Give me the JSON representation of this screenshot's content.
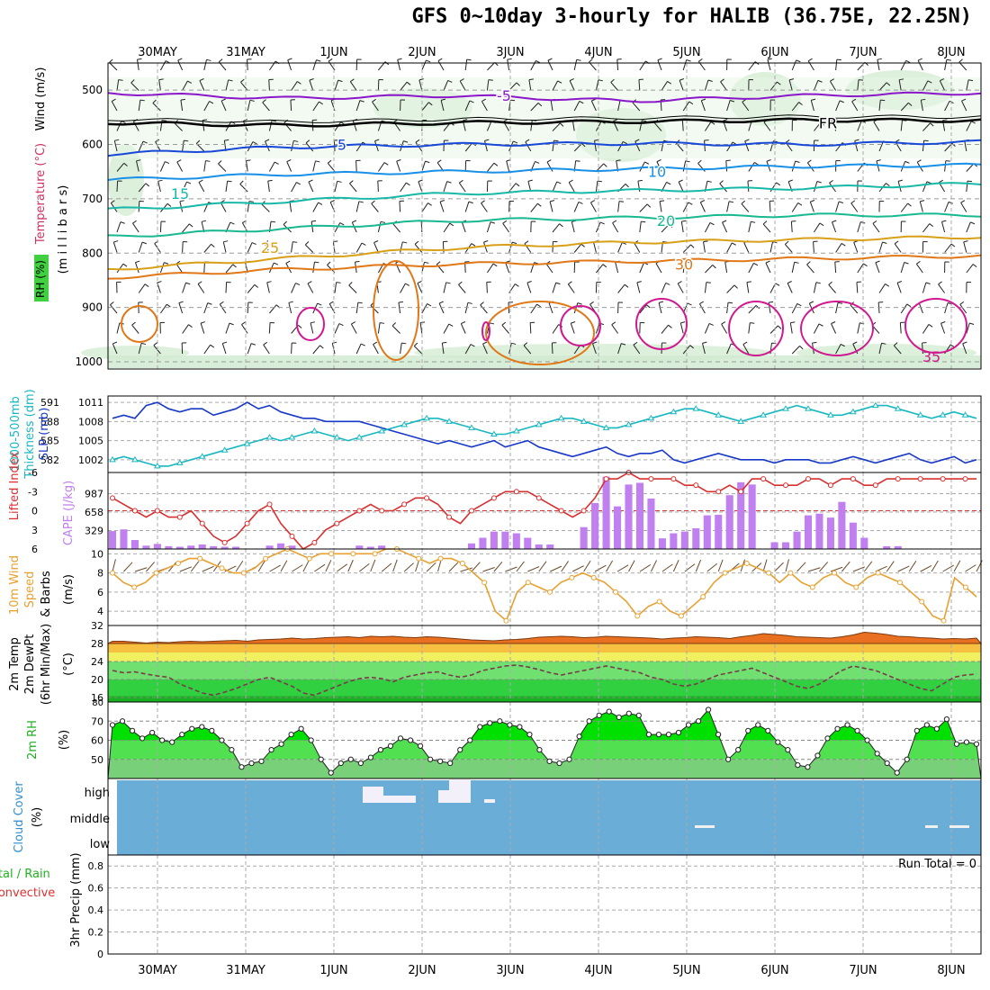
{
  "title": "GFS 0~10day 3-hourly for HALIB (36.75E, 22.25N)",
  "colors": {
    "purple": "#8a18c8",
    "black": "#000000",
    "blue": "#1848d8",
    "sky": "#1890e8",
    "teal": "#18b8a8",
    "green": "#18b890",
    "gold": "#d8a018",
    "orange": "#e07818",
    "magenta": "#d01890",
    "cape": "#c080f0",
    "lifted": "#d83030",
    "thickness": "#18b8c0",
    "slp": "#1838c8",
    "windspd": "#e8a030",
    "cloud": "#6aaed8",
    "rh_dark": "#00e000",
    "rh_mid": "#50e050",
    "rh_light": "#78d078"
  },
  "chart_data": [
    {
      "panel": "upper-air",
      "type": "area",
      "ylabel_parts": [
        "RH (%)",
        "Temperature (°C)",
        "Wind (m/s)",
        "(m i l l i b a r s)"
      ],
      "y_ticks": [
        "500",
        "600",
        "700",
        "800",
        "900",
        "1000"
      ],
      "ylim": [
        1000,
        450
      ],
      "isotherms": [
        {
          "label": "-5",
          "pressure": [
            505,
            515,
            510,
            520,
            510,
            505
          ],
          "color": "purple"
        },
        {
          "label": "FR",
          "pressure": [
            560,
            565,
            560,
            558,
            555,
            556
          ],
          "color": "black"
        },
        {
          "label": "5",
          "pressure": [
            618,
            605,
            600,
            598,
            600,
            595
          ],
          "color": "blue"
        },
        {
          "label": "10",
          "pressure": [
            665,
            655,
            650,
            645,
            640,
            638
          ],
          "color": "sky"
        },
        {
          "label": "15",
          "pressure": [
            720,
            705,
            690,
            685,
            680,
            672
          ],
          "color": "teal"
        },
        {
          "label": "20",
          "pressure": [
            770,
            755,
            740,
            735,
            730,
            730
          ],
          "color": "green"
        },
        {
          "label": "25",
          "pressure": [
            830,
            810,
            790,
            780,
            775,
            770
          ],
          "color": "gold"
        },
        {
          "label": "30",
          "pressure": [
            845,
            830,
            820,
            815,
            810,
            805
          ],
          "color": "orange"
        },
        {
          "label": "35",
          "pressure": [
            960,
            955,
            950,
            945,
            955,
            960
          ],
          "color": "magenta"
        }
      ],
      "contour_labels": [
        "-5",
        "FR",
        "5",
        "10",
        "15",
        "20",
        "25",
        "30",
        "35"
      ]
    },
    {
      "panel": "slp-thickness",
      "type": "line",
      "ylabel_parts": [
        "1000-500mb",
        "Thickness (dm)",
        "SLP (mb)"
      ],
      "left_ticks": [
        "591",
        "588",
        "585",
        "582"
      ],
      "right_ticks": [
        "1011",
        "1008",
        "1005",
        "1002"
      ],
      "ylim": [
        1000,
        1012
      ],
      "slp": [
        1008.5,
        1009,
        1008.5,
        1010.5,
        1011,
        1010,
        1009.5,
        1010,
        1010,
        1009,
        1009.5,
        1010,
        1011,
        1010,
        1010.5,
        1009.5,
        1009,
        1008.5,
        1008.5,
        1008,
        1008,
        1008,
        1008,
        1007.5,
        1007,
        1006.5,
        1006,
        1005.5,
        1005,
        1004.5,
        1005,
        1004.5,
        1004,
        1004.5,
        1005,
        1004,
        1004.5,
        1005,
        1004,
        1003.5,
        1003,
        1002.5,
        1003,
        1003.5,
        1004,
        1003,
        1002.5,
        1003,
        1003,
        1003.5,
        1002,
        1001.5,
        1002,
        1002.5,
        1003,
        1002.5,
        1002,
        1002,
        1002,
        1001.5,
        1002,
        1002,
        1002,
        1001.5,
        1001.5,
        1002,
        1002.5,
        1002,
        1001.5,
        1002,
        1002.5,
        1003,
        1002,
        1001.5,
        1002,
        1002.5,
        1001.5,
        1002
      ],
      "thickness": [
        1002,
        1002.5,
        1002,
        1001.5,
        1001,
        1001,
        1001.5,
        1002,
        1002.5,
        1003,
        1003.5,
        1004,
        1004.5,
        1005,
        1005.5,
        1005,
        1005.5,
        1006,
        1006.5,
        1006,
        1005.5,
        1005,
        1005.5,
        1006,
        1006.5,
        1007,
        1007.5,
        1008,
        1008.5,
        1008.5,
        1008,
        1007.5,
        1007,
        1006.5,
        1006,
        1006,
        1006.5,
        1007,
        1007.5,
        1008,
        1008.5,
        1008.5,
        1008,
        1007.5,
        1007,
        1007,
        1007.5,
        1008,
        1008.5,
        1009,
        1009.5,
        1010,
        1010,
        1009.5,
        1009,
        1008.5,
        1008,
        1008.5,
        1009,
        1009.5,
        1010,
        1010.5,
        1010,
        1009.5,
        1009,
        1009,
        1009.5,
        1010,
        1010.5,
        1010.5,
        1010,
        1009.5,
        1009,
        1008.5,
        1009,
        1009.5,
        1009,
        1008.5
      ]
    },
    {
      "panel": "cape-lifted-index",
      "type": "bar",
      "ylabel_parts": [
        "Lifted Index",
        "CAPE (J/kg)"
      ],
      "left_ticks": [
        "-6",
        "-3",
        "0",
        "3",
        "6"
      ],
      "right_ticks": [
        "987",
        "658",
        "329"
      ],
      "ylim": [
        0,
        1300
      ],
      "cape": [
        320,
        350,
        160,
        60,
        90,
        50,
        40,
        60,
        80,
        50,
        40,
        40,
        0,
        0,
        60,
        100,
        60,
        0,
        0,
        0,
        0,
        0,
        60,
        40,
        60,
        0,
        0,
        0,
        0,
        0,
        0,
        0,
        100,
        200,
        310,
        310,
        280,
        200,
        80,
        80,
        0,
        0,
        390,
        820,
        1290,
        760,
        1150,
        1180,
        900,
        190,
        280,
        310,
        370,
        600,
        610,
        960,
        1190,
        1150,
        0,
        120,
        120,
        310,
        600,
        630,
        560,
        840,
        470,
        200,
        0,
        50,
        50,
        0,
        0,
        0,
        0,
        0,
        0,
        0
      ],
      "lifted_index": [
        -2,
        -1,
        0,
        1,
        0,
        1,
        1,
        0,
        2,
        4,
        5,
        4,
        2,
        0,
        -1,
        2,
        4,
        6,
        5,
        3,
        2,
        1,
        0,
        -1,
        0,
        0,
        -1,
        -2,
        -2,
        -1,
        1,
        2,
        0,
        -1,
        -2,
        -3,
        -3,
        -3,
        -2,
        -1,
        0,
        1,
        0,
        -2,
        -5,
        -5,
        -6,
        -5,
        -5,
        -5,
        -5,
        -4,
        -4,
        -3,
        -3,
        -4,
        -3,
        -5,
        -5,
        -4,
        -4,
        -4,
        -5,
        -5,
        -4,
        -5,
        -5,
        -4,
        -4,
        -5,
        -5,
        -5,
        -5,
        -5,
        -5,
        -5,
        -5,
        -5
      ]
    },
    {
      "panel": "wind-10m",
      "type": "line",
      "ylabel_parts": [
        "10m Wind",
        "Speed",
        "& Barbs",
        "(m/s)"
      ],
      "y_ticks": [
        "10",
        "8",
        "6",
        "4"
      ],
      "ylim": [
        2.5,
        10.5
      ],
      "speed": [
        8,
        7,
        6.5,
        7,
        8,
        8.5,
        9,
        9.5,
        9.5,
        9,
        8.5,
        8,
        8,
        8.5,
        9.5,
        10,
        10.5,
        10,
        9.5,
        10,
        10,
        10,
        10,
        10,
        10,
        10.5,
        10.5,
        10,
        9.5,
        9,
        9.5,
        9.5,
        9,
        8,
        7,
        4,
        3,
        6,
        7,
        6.5,
        6,
        7,
        7.5,
        8,
        7.5,
        7,
        6,
        5,
        3.5,
        4.5,
        5,
        4,
        3.5,
        4.5,
        5.5,
        7,
        8,
        8.5,
        9,
        8.5,
        8,
        7,
        8,
        7,
        6.5,
        7.5,
        8,
        7,
        6.5,
        7.5,
        8,
        7.5,
        7,
        6,
        5,
        3.5,
        3,
        7.5,
        6.5,
        5.5
      ]
    },
    {
      "panel": "temp-dewpoint",
      "type": "area",
      "ylabel_parts": [
        "2m Temp",
        "2m DewPt",
        "(6hr Min/Max)",
        "(°C)"
      ],
      "y_ticks": [
        "32",
        "28",
        "24",
        "20",
        "16"
      ],
      "ylim": [
        15,
        32
      ],
      "temp": [
        28.5,
        28.5,
        28.3,
        28.1,
        28.3,
        28.2,
        28.4,
        28.5,
        28.4,
        28.5,
        28.6,
        28.7,
        28.5,
        28.8,
        28.9,
        29.0,
        29.2,
        29.0,
        29.1,
        29.3,
        29.4,
        29.5,
        29.3,
        29.6,
        29.5,
        29.6,
        29.4,
        29.3,
        29.5,
        29.4,
        29.2,
        29.0,
        28.8,
        28.7,
        28.6,
        28.8,
        28.9,
        29.1,
        29.4,
        29.5,
        29.6,
        29.5,
        29.3,
        29.4,
        29.6,
        29.5,
        29.4,
        29.3,
        29.2,
        29.0,
        29.2,
        29.3,
        29.5,
        29.4,
        29.3,
        29.1,
        29.5,
        29.8,
        30.2,
        30.0,
        29.8,
        29.5,
        29.4,
        29.3,
        29.2,
        29.5,
        29.9,
        30.5,
        30.3,
        30.0,
        29.6,
        29.5,
        29.3,
        29.2,
        29.0,
        29.1,
        29.0,
        29.2
      ],
      "dewpt": [
        22,
        21.5,
        21.7,
        21.2,
        20.8,
        20.5,
        19,
        18,
        17,
        16.5,
        17.2,
        18,
        19,
        20,
        20.5,
        19.5,
        18.5,
        17,
        16.5,
        17.5,
        18.5,
        19.5,
        20.2,
        20.5,
        20.2,
        19.5,
        20.5,
        21,
        21.5,
        21.7,
        21,
        20.5,
        21,
        22,
        22.5,
        23.0,
        23.2,
        22.8,
        22.2,
        21.5,
        21.0,
        21.5,
        22,
        22.5,
        23,
        22.5,
        22,
        21.5,
        20.5,
        20,
        19,
        18.5,
        19,
        20,
        21,
        21.5,
        22,
        22.5,
        21.5,
        20.5,
        19.5,
        18.5,
        18,
        19,
        20.5,
        22,
        23,
        22.5,
        22,
        21,
        20,
        19,
        18,
        17.5,
        19,
        20.5,
        21,
        21.2
      ]
    },
    {
      "panel": "rh-2m",
      "type": "area",
      "ylabel_parts": [
        "2m RH",
        "(%)"
      ],
      "y_ticks": [
        "80",
        "70",
        "60",
        "50"
      ],
      "ylim": [
        40,
        80
      ],
      "rh": [
        68,
        70,
        65,
        61,
        64,
        60,
        59,
        63,
        66,
        67,
        65,
        60,
        55,
        46,
        48,
        49,
        55,
        58,
        63,
        66,
        60,
        50,
        43,
        48,
        50,
        48,
        51,
        55,
        57,
        61,
        60,
        57,
        50,
        49,
        48,
        55,
        60,
        67,
        69,
        70,
        68,
        67,
        63,
        55,
        49,
        48,
        50,
        62,
        70,
        73,
        75,
        72,
        74,
        73,
        63,
        63,
        63,
        64,
        68,
        70,
        76,
        63,
        50,
        55,
        65,
        68,
        65,
        59,
        55,
        47,
        46,
        52,
        61,
        66,
        68,
        65,
        60,
        53,
        48,
        43,
        50,
        65,
        68,
        66,
        71,
        58,
        59,
        58
      ]
    },
    {
      "panel": "cloud-cover",
      "type": "bar",
      "ylabel_parts": [
        "Cloud Cover",
        "(%)"
      ],
      "levels": [
        "high",
        "middle",
        "low"
      ],
      "high_cover": [
        0,
        0,
        0,
        0,
        0,
        0,
        0,
        0,
        0,
        0,
        0,
        0,
        0,
        0,
        0,
        0,
        0,
        0,
        0,
        0,
        0,
        0,
        0,
        0,
        0,
        0,
        0,
        0,
        0,
        0,
        0,
        0,
        0,
        0,
        0,
        0,
        0,
        0,
        0,
        0,
        0,
        0,
        0,
        0,
        0,
        0,
        0,
        0,
        0,
        0,
        0,
        0,
        0,
        0,
        0,
        0,
        0,
        0,
        0,
        0,
        0,
        0,
        0,
        0,
        0,
        0,
        0,
        0,
        0,
        0,
        0,
        0,
        0,
        0,
        0,
        0,
        0,
        0
      ]
    },
    {
      "panel": "precip",
      "type": "bar",
      "ylabel_parts": [
        "Total / Rain",
        "Convective",
        "3hr Precip (mm)"
      ],
      "y_ticks": [
        "0.8",
        "0.6",
        "0.4",
        "0.2",
        "0"
      ],
      "ylim": [
        0,
        0.9
      ],
      "run_total": "Run Total = 0"
    }
  ],
  "x_axis": {
    "dates": [
      "30MAY",
      "31MAY",
      "1JUN",
      "2JUN",
      "3JUN",
      "4JUN",
      "5JUN",
      "6JUN",
      "7JUN",
      "8JUN"
    ]
  }
}
